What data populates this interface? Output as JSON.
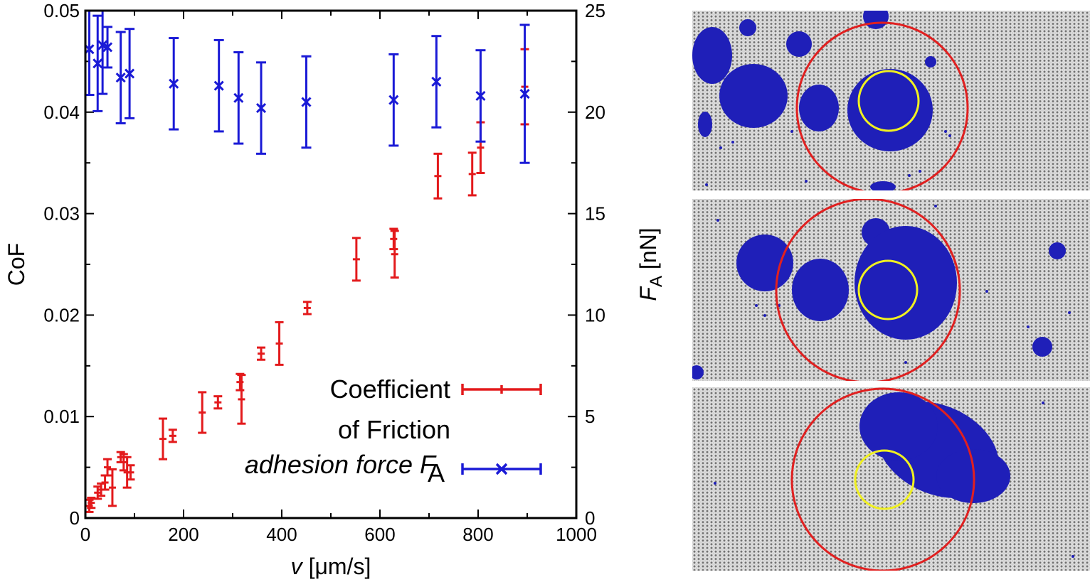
{
  "chart_data": {
    "type": "scatter",
    "title": "",
    "xlabel": "v [μm/s]",
    "ylabel_left": "CoF",
    "ylabel_right": "F_A [nN]",
    "xlim": [
      0,
      1000
    ],
    "ylim_left": [
      0,
      0.05
    ],
    "ylim_right": [
      0,
      25
    ],
    "x_ticks": [
      "0",
      "200",
      "400",
      "600",
      "800",
      "1000"
    ],
    "y_left_ticks": [
      "0",
      "0.01",
      "0.02",
      "0.03",
      "0.04",
      "0.05"
    ],
    "y_right_ticks": [
      "0",
      "5",
      "10",
      "15",
      "20",
      "25"
    ],
    "legend_placement": "lower-right",
    "legend": [
      {
        "line1": "Coefficient",
        "line2": "of Friction"
      },
      {
        "text": "adhesion force F",
        "subscript": "A"
      }
    ],
    "series": [
      {
        "axis": "left",
        "color": "#e31a1c",
        "marker": "plus",
        "points": [
          {
            "x": 8,
            "y": 0.0012,
            "err": 0.0006
          },
          {
            "x": 12,
            "y": 0.0015,
            "err": 0.0005
          },
          {
            "x": 25,
            "y": 0.0025,
            "err": 0.0006
          },
          {
            "x": 32,
            "y": 0.0028,
            "err": 0.0006
          },
          {
            "x": 40,
            "y": 0.0035,
            "err": 0.0007
          },
          {
            "x": 45,
            "y": 0.005,
            "err": 0.0008
          },
          {
            "x": 55,
            "y": 0.003,
            "err": 0.0018
          },
          {
            "x": 72,
            "y": 0.006,
            "err": 0.0005
          },
          {
            "x": 78,
            "y": 0.0055,
            "err": 0.0008
          },
          {
            "x": 85,
            "y": 0.0045,
            "err": 0.0015
          },
          {
            "x": 92,
            "y": 0.0045,
            "err": 0.0007
          },
          {
            "x": 158,
            "y": 0.0078,
            "err": 0.002
          },
          {
            "x": 178,
            "y": 0.0081,
            "err": 0.0006
          },
          {
            "x": 238,
            "y": 0.0104,
            "err": 0.002
          },
          {
            "x": 270,
            "y": 0.0114,
            "err": 0.0006
          },
          {
            "x": 315,
            "y": 0.0134,
            "err": 0.0008
          },
          {
            "x": 318,
            "y": 0.0117,
            "err": 0.0024
          },
          {
            "x": 358,
            "y": 0.0162,
            "err": 0.0006
          },
          {
            "x": 395,
            "y": 0.0172,
            "err": 0.0021
          },
          {
            "x": 452,
            "y": 0.0207,
            "err": 0.0006
          },
          {
            "x": 552,
            "y": 0.0255,
            "err": 0.0021
          },
          {
            "x": 628,
            "y": 0.0275,
            "err": 0.001
          },
          {
            "x": 630,
            "y": 0.026,
            "err": 0.0023
          },
          {
            "x": 718,
            "y": 0.0337,
            "err": 0.0022
          },
          {
            "x": 788,
            "y": 0.0339,
            "err": 0.0021
          },
          {
            "x": 805,
            "y": 0.0365,
            "err": 0.0025
          },
          {
            "x": 895,
            "y": 0.0425,
            "err": 0.0037
          }
        ]
      },
      {
        "axis": "right",
        "color": "#1a1ad6",
        "marker": "x",
        "points": [
          {
            "x": 8,
            "y": 23.1,
            "err": 2.25
          },
          {
            "x": 25,
            "y": 22.4,
            "err": 2.35
          },
          {
            "x": 35,
            "y": 23.3,
            "err": 2.4
          },
          {
            "x": 45,
            "y": 23.2,
            "err": 1.0
          },
          {
            "x": 72,
            "y": 21.7,
            "err": 2.25
          },
          {
            "x": 90,
            "y": 21.9,
            "err": 2.2
          },
          {
            "x": 180,
            "y": 21.4,
            "err": 2.25
          },
          {
            "x": 272,
            "y": 21.3,
            "err": 2.25
          },
          {
            "x": 312,
            "y": 20.7,
            "err": 2.25
          },
          {
            "x": 358,
            "y": 20.2,
            "err": 2.25
          },
          {
            "x": 450,
            "y": 20.5,
            "err": 2.25
          },
          {
            "x": 628,
            "y": 20.6,
            "err": 2.25
          },
          {
            "x": 715,
            "y": 21.5,
            "err": 2.25
          },
          {
            "x": 805,
            "y": 20.8,
            "err": 2.25
          },
          {
            "x": 895,
            "y": 20.9,
            "err": 3.4
          }
        ]
      }
    ]
  },
  "simulation_panels": [
    {
      "name": "snapshot-top",
      "colors": {
        "particles": "#1f1fb8",
        "outer_circle": "#e02020",
        "inner_circle": "#f0f020"
      }
    },
    {
      "name": "snapshot-middle",
      "colors": {
        "particles": "#1f1fb8",
        "outer_circle": "#e02020",
        "inner_circle": "#f0f020"
      }
    },
    {
      "name": "snapshot-bottom",
      "colors": {
        "particles": "#1f1fb8",
        "outer_circle": "#e02020",
        "inner_circle": "#f0f020"
      }
    }
  ]
}
